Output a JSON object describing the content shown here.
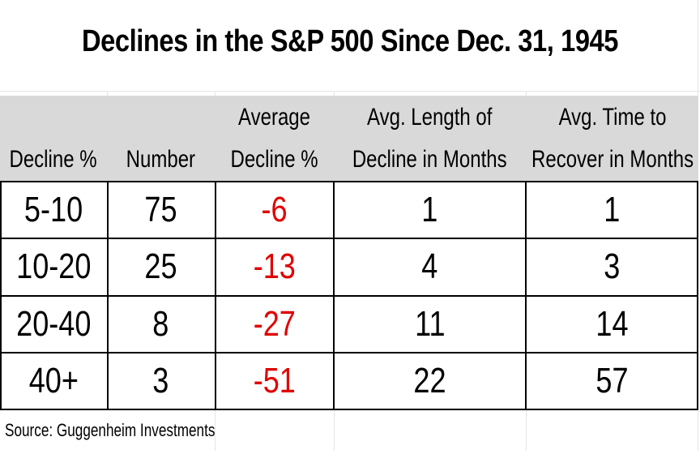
{
  "chart_data": {
    "type": "table",
    "title": "Declines in the S&P 500 Since Dec. 31, 1945",
    "columns": [
      {
        "line1": "",
        "line2": "Decline %"
      },
      {
        "line1": "",
        "line2": "Number"
      },
      {
        "line1": "Average",
        "line2": "Decline %"
      },
      {
        "line1": "Avg. Length of",
        "line2": "Decline in Months"
      },
      {
        "line1": "Avg. Time to",
        "line2": "Recover in Months"
      }
    ],
    "rows": [
      [
        "5-10",
        "75",
        "-6",
        "1",
        "1"
      ],
      [
        "10-20",
        "25",
        "-13",
        "4",
        "3"
      ],
      [
        "20-40",
        "8",
        "-27",
        "11",
        "14"
      ],
      [
        "40+",
        "3",
        "-51",
        "22",
        "57"
      ]
    ],
    "negative_value_color": "#e00000",
    "header_background": "#d9d9d9",
    "source": "Source: Guggenheim Investments"
  }
}
